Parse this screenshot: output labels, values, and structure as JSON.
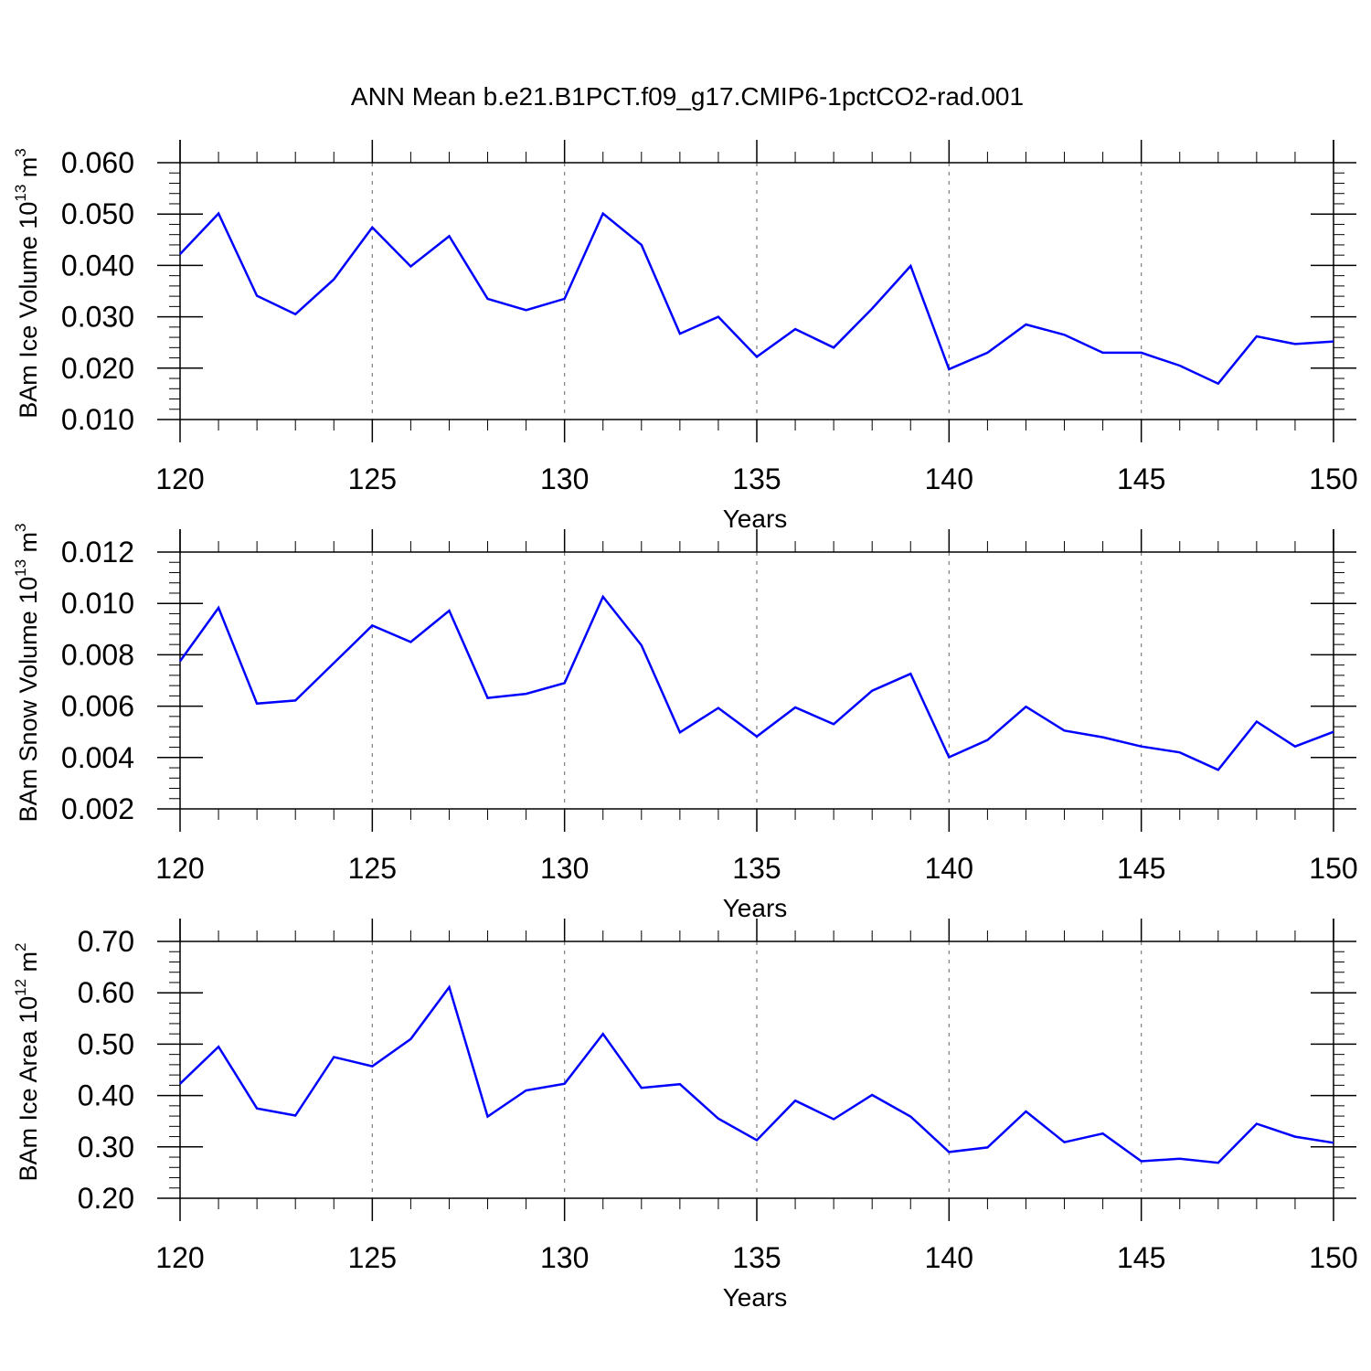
{
  "figure": {
    "title": "ANN Mean b.e21.B1PCT.f09_g17.CMIP6-1pctCO2-rad.001",
    "line_color": "#0000ff",
    "grid_color": "#808080"
  },
  "chart_data": [
    {
      "type": "line",
      "title": "",
      "xlabel": "Years",
      "ylabel": {
        "text": "BAm Ice Volume 10",
        "exponent": "13",
        "unit": " m",
        "unit_exponent": "3"
      },
      "xlim": [
        120,
        150
      ],
      "ylim": [
        0.01,
        0.06
      ],
      "xticks": [
        120,
        125,
        130,
        135,
        140,
        145,
        150
      ],
      "xtick_labels": [
        "120",
        "125",
        "130",
        "135",
        "140",
        "145",
        "150"
      ],
      "yticks": [
        0.01,
        0.02,
        0.03,
        0.04,
        0.05,
        0.06
      ],
      "ytick_labels": [
        "0.010",
        "0.020",
        "0.030",
        "0.040",
        "0.050",
        "0.060"
      ],
      "grid": "vertical dashed at major x ticks",
      "x": [
        120,
        121,
        122,
        123,
        124,
        125,
        126,
        127,
        128,
        129,
        130,
        131,
        132,
        133,
        134,
        135,
        136,
        137,
        138,
        139,
        140,
        141,
        142,
        143,
        144,
        145,
        146,
        147,
        148,
        149,
        150
      ],
      "series": [
        {
          "values": [
            0.0422,
            0.0501,
            0.0341,
            0.0305,
            0.0373,
            0.0474,
            0.0398,
            0.0457,
            0.0335,
            0.0313,
            0.0335,
            0.0501,
            0.044,
            0.0267,
            0.03,
            0.0222,
            0.0276,
            0.024,
            0.0316,
            0.0399,
            0.0198,
            0.023,
            0.0285,
            0.0265,
            0.023,
            0.023,
            0.0205,
            0.017,
            0.0262,
            0.0247,
            0.0252
          ]
        }
      ]
    },
    {
      "type": "line",
      "title": "",
      "xlabel": "Years",
      "ylabel": {
        "text": "BAm Snow Volume 10",
        "exponent": "13",
        "unit": " m",
        "unit_exponent": "3"
      },
      "xlim": [
        120,
        150
      ],
      "ylim": [
        0.002,
        0.012
      ],
      "xticks": [
        120,
        125,
        130,
        135,
        140,
        145,
        150
      ],
      "xtick_labels": [
        "120",
        "125",
        "130",
        "135",
        "140",
        "145",
        "150"
      ],
      "yticks": [
        0.002,
        0.004,
        0.006,
        0.008,
        0.01,
        0.012
      ],
      "ytick_labels": [
        "0.002",
        "0.004",
        "0.006",
        "0.008",
        "0.010",
        "0.012"
      ],
      "grid": "vertical dashed at major x ticks",
      "x": [
        120,
        121,
        122,
        123,
        124,
        125,
        126,
        127,
        128,
        129,
        130,
        131,
        132,
        133,
        134,
        135,
        136,
        137,
        138,
        139,
        140,
        141,
        142,
        143,
        144,
        145,
        146,
        147,
        148,
        149,
        150
      ],
      "series": [
        {
          "values": [
            0.00775,
            0.00983,
            0.0061,
            0.00622,
            0.00768,
            0.00914,
            0.0085,
            0.00972,
            0.00632,
            0.00648,
            0.0069,
            0.01026,
            0.00837,
            0.00498,
            0.00593,
            0.00482,
            0.00595,
            0.0053,
            0.0066,
            0.00726,
            0.00401,
            0.00468,
            0.00598,
            0.00505,
            0.00479,
            0.00443,
            0.0042,
            0.00352,
            0.0054,
            0.00443,
            0.005
          ]
        }
      ]
    },
    {
      "type": "line",
      "title": "",
      "xlabel": "Years",
      "ylabel": {
        "text": "BAm Ice Area 10",
        "exponent": "12",
        "unit": " m",
        "unit_exponent": "2"
      },
      "xlim": [
        120,
        150
      ],
      "ylim": [
        0.2,
        0.7
      ],
      "xticks": [
        120,
        125,
        130,
        135,
        140,
        145,
        150
      ],
      "xtick_labels": [
        "120",
        "125",
        "130",
        "135",
        "140",
        "145",
        "150"
      ],
      "yticks": [
        0.2,
        0.3,
        0.4,
        0.5,
        0.6,
        0.7
      ],
      "ytick_labels": [
        "0.20",
        "0.30",
        "0.40",
        "0.50",
        "0.60",
        "0.70"
      ],
      "grid": "vertical dashed at major x ticks",
      "x": [
        120,
        121,
        122,
        123,
        124,
        125,
        126,
        127,
        128,
        129,
        130,
        131,
        132,
        133,
        134,
        135,
        136,
        137,
        138,
        139,
        140,
        141,
        142,
        143,
        144,
        145,
        146,
        147,
        148,
        149,
        150
      ],
      "series": [
        {
          "values": [
            0.423,
            0.495,
            0.375,
            0.361,
            0.475,
            0.457,
            0.51,
            0.611,
            0.359,
            0.41,
            0.423,
            0.52,
            0.415,
            0.422,
            0.355,
            0.313,
            0.39,
            0.354,
            0.401,
            0.359,
            0.29,
            0.299,
            0.369,
            0.309,
            0.326,
            0.272,
            0.277,
            0.269,
            0.345,
            0.32,
            0.308
          ]
        }
      ]
    }
  ]
}
